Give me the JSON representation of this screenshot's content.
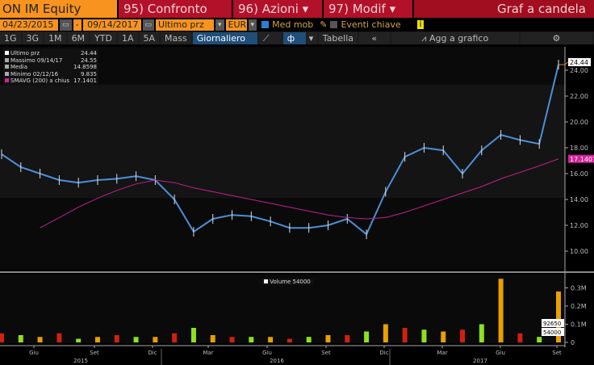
{
  "header": {
    "ticker": "ON IM Equity",
    "compare": "95) Confronto",
    "actions": "96) Azioni",
    "modify": "97) Modif",
    "title": "Graf a candela"
  },
  "controls": {
    "start_date": "04/23/2015",
    "end_date": "09/14/2017",
    "separator": "-",
    "field": "Ultimo prz",
    "currency": "EUR",
    "moving_avg": "Med mob",
    "moving_avg_checked": true,
    "key_events": "Eventi chiave",
    "key_events_checked": false
  },
  "toolbar": {
    "periods": [
      "1G",
      "3G",
      "1M",
      "6M",
      "YTD",
      "1A",
      "5A",
      "Mass"
    ],
    "frequency": "Giornaliero ▼",
    "table": "Tabella",
    "collapse": "«",
    "add_to_chart": "Agg a grafico"
  },
  "legend": [
    {
      "label": "Ultimo prz",
      "value": "24.44"
    },
    {
      "label": "Massimo 09/14/17",
      "value": "24.55"
    },
    {
      "label": "Media",
      "value": "14.8598"
    },
    {
      "label": "Minimo 02/12/16",
      "value": "9.835"
    },
    {
      "label": "SMAVG (200) a chius",
      "value": "17.1401"
    }
  ],
  "volume_legend": "Volume 54000",
  "chart_data": {
    "type": "line",
    "price": {
      "yticks": [
        "10.00",
        "12.00",
        "14.00",
        "16.00",
        "18.00",
        "20.00",
        "22.00",
        "24.00"
      ],
      "ylim": [
        9,
        25.5
      ],
      "last_label": "24.44",
      "sma_label": "17.1401",
      "x": [
        "2015-04",
        "2015-05",
        "2015-06",
        "2015-07",
        "2015-08",
        "2015-09",
        "2015-10",
        "2015-11",
        "2015-12",
        "2016-01",
        "2016-02",
        "2016-03",
        "2016-04",
        "2016-05",
        "2016-06",
        "2016-07",
        "2016-08",
        "2016-09",
        "2016-10",
        "2016-11",
        "2016-12",
        "2017-01",
        "2017-02",
        "2017-03",
        "2017-04",
        "2017-05",
        "2017-06",
        "2017-07",
        "2017-08",
        "2017-09"
      ],
      "close": [
        17.5,
        16.5,
        16.0,
        15.5,
        15.3,
        15.5,
        15.6,
        15.8,
        15.5,
        14.0,
        11.5,
        12.5,
        12.8,
        12.7,
        12.3,
        11.8,
        11.8,
        12.0,
        12.5,
        11.3,
        14.6,
        17.3,
        18.0,
        17.8,
        16.0,
        17.8,
        19.0,
        18.6,
        18.3,
        24.44
      ],
      "sma": [
        null,
        null,
        11.8,
        12.6,
        13.4,
        14.1,
        14.7,
        15.2,
        15.5,
        15.3,
        14.9,
        14.6,
        14.3,
        14.0,
        13.7,
        13.4,
        13.1,
        12.8,
        12.6,
        12.5,
        12.6,
        13.0,
        13.5,
        14.0,
        14.5,
        15.0,
        15.6,
        16.1,
        16.6,
        17.14
      ]
    },
    "volume": {
      "yticks": [
        "0",
        "0.1M",
        "0.2M",
        "0.3M"
      ],
      "ylim": [
        0,
        0.37
      ],
      "labels": [
        "92650",
        "54000"
      ],
      "values": [
        0.05,
        0.04,
        0.03,
        0.05,
        0.02,
        0.03,
        0.04,
        0.03,
        0.03,
        0.05,
        0.08,
        0.04,
        0.03,
        0.03,
        0.03,
        0.02,
        0.03,
        0.04,
        0.04,
        0.06,
        0.1,
        0.08,
        0.07,
        0.06,
        0.07,
        0.1,
        0.35,
        0.05,
        0.03,
        0.28
      ]
    },
    "xticks": [
      "Giu",
      "Set",
      "Dic",
      "Mar",
      "Giu",
      "Set",
      "Dic",
      "Mar",
      "Giu",
      "Set"
    ],
    "years": [
      "2015",
      "2016",
      "2017"
    ]
  }
}
